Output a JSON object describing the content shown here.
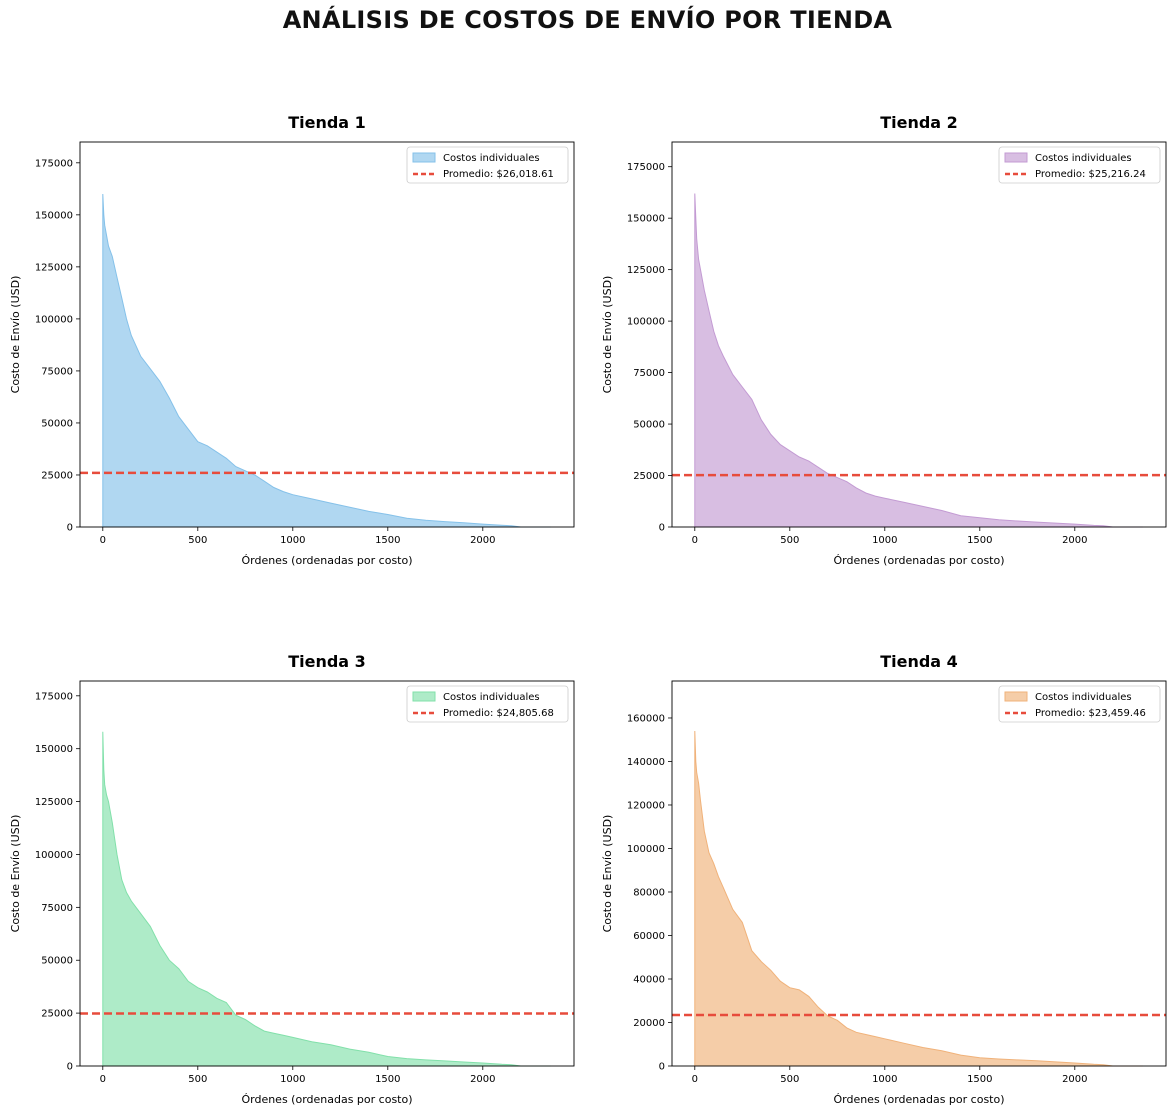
{
  "figure": {
    "suptitle": "ANÁLISIS DE COSTOS DE ENVÍO POR TIENDA"
  },
  "chart_data": [
    {
      "type": "area",
      "title": "Tienda 1",
      "xlabel": "Órdenes (ordenadas por costo)",
      "ylabel": "Costo de Envío (USD)",
      "xlim": [
        -120,
        2480
      ],
      "ylim": [
        0,
        185000
      ],
      "xticks": [
        0,
        500,
        1000,
        1500,
        2000
      ],
      "yticks": [
        0,
        25000,
        50000,
        75000,
        100000,
        125000,
        150000,
        175000
      ],
      "color": "#85c1e9",
      "n_orders": 2359,
      "x": [
        0,
        5,
        10,
        20,
        30,
        50,
        75,
        100,
        125,
        150,
        200,
        250,
        300,
        350,
        400,
        450,
        500,
        550,
        600,
        650,
        700,
        750,
        800,
        850,
        900,
        950,
        1000,
        1100,
        1200,
        1300,
        1400,
        1500,
        1600,
        1700,
        1800,
        1900,
        2000,
        2100,
        2150,
        2200,
        2358
      ],
      "values": [
        160000,
        150000,
        145000,
        140000,
        135000,
        130000,
        120000,
        110000,
        100000,
        92000,
        82000,
        76000,
        70000,
        62000,
        53000,
        47000,
        41000,
        39000,
        36000,
        33000,
        29000,
        27000,
        25000,
        22000,
        19000,
        17000,
        15500,
        13500,
        11500,
        9500,
        7500,
        6000,
        4200,
        3200,
        2600,
        2000,
        1400,
        800,
        600,
        0,
        0
      ],
      "mean": 26018.61,
      "legend": {
        "fill_label": "Costos individuales",
        "line_label": "Promedio: $26,018.61",
        "placement": "upper right"
      }
    },
    {
      "type": "area",
      "title": "Tienda 2",
      "xlabel": "Órdenes (ordenadas por costo)",
      "ylabel": "Costo de Envío (USD)",
      "xlim": [
        -120,
        2480
      ],
      "ylim": [
        0,
        187000
      ],
      "xticks": [
        0,
        500,
        1000,
        1500,
        2000
      ],
      "yticks": [
        0,
        25000,
        50000,
        75000,
        100000,
        125000,
        150000,
        175000
      ],
      "color": "#c39bd3",
      "n_orders": 2359,
      "x": [
        0,
        5,
        10,
        20,
        30,
        50,
        75,
        100,
        125,
        150,
        200,
        250,
        300,
        350,
        400,
        450,
        500,
        550,
        600,
        650,
        700,
        750,
        800,
        850,
        900,
        950,
        1000,
        1100,
        1200,
        1300,
        1400,
        1500,
        1600,
        1700,
        1800,
        1900,
        2000,
        2100,
        2150,
        2200,
        2358
      ],
      "values": [
        162000,
        150000,
        140000,
        130000,
        125000,
        115000,
        105000,
        95000,
        88000,
        83000,
        74000,
        68000,
        62000,
        52000,
        45000,
        40000,
        37000,
        34000,
        32000,
        29000,
        26000,
        24000,
        22000,
        19000,
        16500,
        15000,
        14000,
        12000,
        10000,
        8000,
        5500,
        4500,
        3500,
        2900,
        2400,
        1900,
        1400,
        800,
        600,
        0,
        0
      ],
      "mean": 25216.24,
      "legend": {
        "fill_label": "Costos individuales",
        "line_label": "Promedio: $25,216.24",
        "placement": "upper right"
      }
    },
    {
      "type": "area",
      "title": "Tienda 3",
      "xlabel": "Órdenes (ordenadas por costo)",
      "ylabel": "Costo de Envío (USD)",
      "xlim": [
        -120,
        2480
      ],
      "ylim": [
        0,
        182000
      ],
      "xticks": [
        0,
        500,
        1000,
        1500,
        2000
      ],
      "yticks": [
        0,
        25000,
        50000,
        75000,
        100000,
        125000,
        150000,
        175000
      ],
      "color": "#82e0aa",
      "n_orders": 2359,
      "x": [
        0,
        5,
        10,
        20,
        30,
        50,
        75,
        100,
        125,
        150,
        200,
        250,
        300,
        350,
        400,
        450,
        500,
        550,
        600,
        650,
        700,
        750,
        800,
        850,
        900,
        950,
        1000,
        1100,
        1200,
        1300,
        1400,
        1500,
        1600,
        1700,
        1800,
        1900,
        2000,
        2100,
        2150,
        2200,
        2358
      ],
      "values": [
        158000,
        140000,
        133000,
        128000,
        125000,
        115000,
        100000,
        88000,
        82000,
        78000,
        72000,
        66000,
        57000,
        50000,
        46000,
        40000,
        37000,
        35000,
        32000,
        30000,
        24000,
        22000,
        19000,
        16500,
        15500,
        14500,
        13500,
        11500,
        10000,
        8000,
        6500,
        4500,
        3500,
        2900,
        2400,
        1900,
        1400,
        800,
        600,
        0,
        0
      ],
      "mean": 24805.68,
      "legend": {
        "fill_label": "Costos individuales",
        "line_label": "Promedio: $24,805.68",
        "placement": "upper right"
      }
    },
    {
      "type": "area",
      "title": "Tienda 4",
      "xlabel": "Órdenes (ordenadas por costo)",
      "ylabel": "Costo de Envío (USD)",
      "xlim": [
        -120,
        2480
      ],
      "ylim": [
        0,
        177000
      ],
      "xticks": [
        0,
        500,
        1000,
        1500,
        2000
      ],
      "yticks": [
        0,
        20000,
        40000,
        60000,
        80000,
        100000,
        120000,
        140000,
        160000
      ],
      "color": "#f0b27a",
      "n_orders": 2359,
      "x": [
        0,
        5,
        10,
        20,
        30,
        50,
        75,
        100,
        125,
        150,
        200,
        250,
        300,
        350,
        400,
        450,
        500,
        550,
        600,
        650,
        700,
        750,
        800,
        850,
        900,
        950,
        1000,
        1100,
        1200,
        1300,
        1400,
        1500,
        1600,
        1700,
        1800,
        1900,
        2000,
        2100,
        2150,
        2200,
        2358
      ],
      "values": [
        154000,
        140000,
        135000,
        130000,
        122000,
        108000,
        98000,
        93000,
        87000,
        82000,
        72000,
        66000,
        53000,
        48000,
        44000,
        39000,
        36000,
        35000,
        32000,
        27000,
        23000,
        21000,
        17500,
        15500,
        14500,
        13500,
        12500,
        10500,
        8500,
        7000,
        5000,
        3800,
        3200,
        2800,
        2400,
        1900,
        1400,
        800,
        600,
        0,
        0
      ],
      "mean": 23459.46,
      "legend": {
        "fill_label": "Costos individuales",
        "line_label": "Promedio: $23,459.46",
        "placement": "upper right"
      }
    }
  ],
  "colors": {
    "mean_line": "#e74c3c"
  }
}
